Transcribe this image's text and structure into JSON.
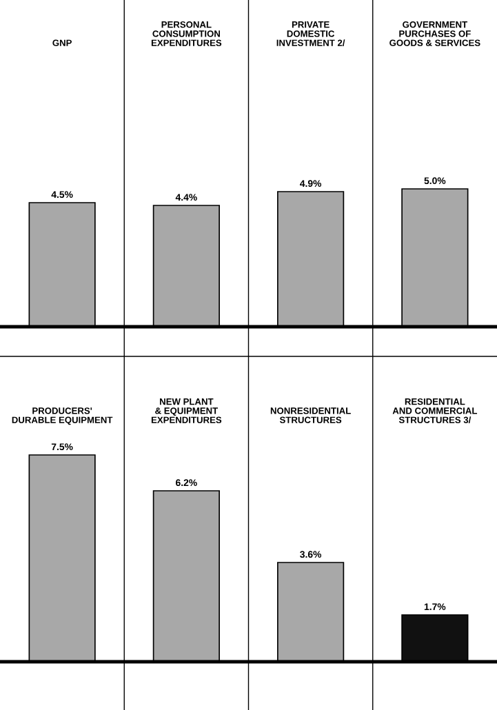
{
  "chart_data": [
    {
      "type": "bar",
      "categories": [
        "GNP",
        "PERSONAL\nCONSUMPTION\nEXPENDITURES",
        "PRIVATE\nDOMESTIC\nINVESTMENT 2/",
        "GOVERNMENT\nPURCHASES OF\nGOODS & SERVICES"
      ],
      "values": [
        4.5,
        4.4,
        4.9,
        5.0
      ],
      "value_labels": [
        "4.5%",
        "4.4%",
        "4.9%",
        "5.0%"
      ],
      "colors": [
        "#a8a8a8",
        "#a8a8a8",
        "#a8a8a8",
        "#a8a8a8"
      ]
    },
    {
      "type": "bar",
      "categories": [
        "PRODUCERS'\nDURABLE EQUIPMENT",
        "NEW PLANT\n& EQUIPMENT\nEXPENDITURES",
        "NONRESIDENTIAL\nSTRUCTURES",
        "RESIDENTIAL\nAND COMMERCIAL\nSTRUCTURES 3/"
      ],
      "values": [
        7.5,
        6.2,
        3.6,
        1.7
      ],
      "value_labels": [
        "7.5%",
        "6.2%",
        "3.6%",
        "1.7%"
      ],
      "colors": [
        "#a8a8a8",
        "#a8a8a8",
        "#a8a8a8",
        "#111111"
      ]
    }
  ]
}
